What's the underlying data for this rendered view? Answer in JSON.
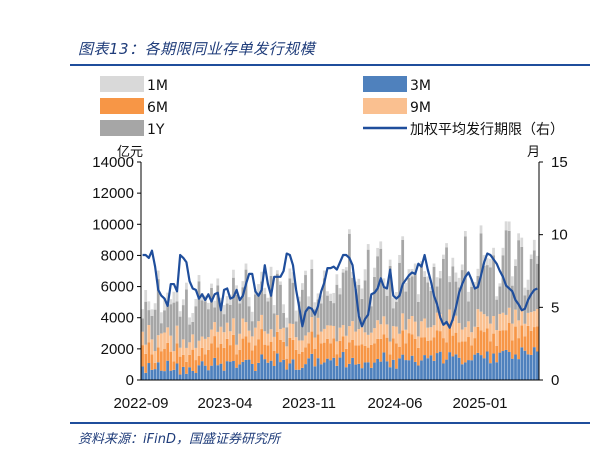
{
  "figure": {
    "title": "图表13：各期限同业存单发行规模",
    "source": "资料来源：iFinD，国盛证券研究所"
  },
  "chart_data": {
    "type": "bar",
    "stacked": true,
    "title": "各期限同业存单发行规模",
    "left_unit": "亿元",
    "right_unit": "月",
    "x_tick_labels": [
      "2022-09",
      "2023-04",
      "2023-11",
      "2024-06",
      "2025-01"
    ],
    "left_axis": {
      "ylim": [
        0,
        14000
      ],
      "ticks": [
        0,
        2000,
        4000,
        6000,
        8000,
        10000,
        12000,
        14000
      ]
    },
    "right_axis": {
      "ylim": [
        0,
        15
      ],
      "ticks": [
        0,
        5,
        10,
        15
      ]
    },
    "legend": [
      {
        "key": "1M",
        "label": "1M",
        "color": "#d9d9d9",
        "kind": "bar"
      },
      {
        "key": "3M",
        "label": "3M",
        "color": "#4f81bd",
        "kind": "bar"
      },
      {
        "key": "6M",
        "label": "6M",
        "color": "#f79646",
        "kind": "bar"
      },
      {
        "key": "9M",
        "label": "9M",
        "color": "#fac090",
        "kind": "bar"
      },
      {
        "key": "1Y",
        "label": "1Y",
        "color": "#a6a6a6",
        "kind": "bar"
      },
      {
        "key": "term",
        "label": "加权平均发行期限（右）",
        "color": "#1f4e9c",
        "kind": "line"
      }
    ],
    "series": [
      {
        "name": "1M",
        "values": [
          590,
          750,
          560,
          430,
          410,
          550,
          700,
          770,
          660,
          320,
          700,
          630,
          350,
          370,
          440,
          460,
          570,
          460,
          400,
          460,
          380,
          400,
          280,
          430,
          450,
          390,
          580,
          480,
          650,
          510,
          610,
          330,
          390,
          390,
          580,
          600,
          330,
          630,
          620,
          400,
          230,
          590,
          540,
          220,
          210,
          550,
          610,
          640,
          670,
          700,
          300,
          420,
          280,
          630,
          600,
          460,
          390,
          510,
          490,
          280,
          460,
          650,
          670,
          390,
          230,
          210,
          290,
          370,
          460,
          400,
          670,
          710,
          360,
          580,
          590,
          530,
          470,
          520,
          480,
          410,
          680,
          620,
          500,
          230,
          560,
          570,
          480,
          620,
          500,
          300,
          360,
          380,
          250,
          210,
          590,
          460,
          280,
          280,
          380,
          560,
          580,
          610,
          360,
          350,
          620,
          460,
          410,
          450,
          510,
          700,
          440,
          540,
          480,
          220,
          200,
          480,
          570,
          610,
          600,
          420,
          440,
          590,
          490,
          640,
          290,
          670,
          500
        ]
      },
      {
        "name": "3M",
        "values": [
          870,
          460,
          1090,
          650,
          700,
          1140,
          600,
          570,
          1240,
          600,
          650,
          1060,
          350,
          840,
          400,
          820,
          580,
          450,
          950,
          1210,
          920,
          630,
          920,
          1420,
          950,
          1050,
          600,
          1210,
          1180,
          1220,
          790,
          1000,
          1160,
          1290,
          1310,
          1030,
          580,
          1100,
          1640,
          1340,
          1110,
          1240,
          900,
          1710,
          1150,
          1300,
          670,
          1060,
          1330,
          660,
          660,
          780,
          1020,
          1390,
          1680,
          880,
          1400,
          1010,
          1130,
          1370,
          1270,
          1430,
          910,
          1440,
          1800,
          820,
          1040,
          1420,
          990,
          1040,
          760,
          1130,
          1140,
          780,
          1120,
          1350,
          1180,
          1770,
          1200,
          820,
          1300,
          730,
          1390,
          1630,
          1280,
          1270,
          1560,
          1160,
          930,
          1260,
          1600,
          1400,
          1590,
          1230,
          1730,
          1820,
          1060,
          1310,
          1790,
          1510,
          1650,
          1430,
          1010,
          1130,
          1280,
          1270,
          1630,
          1740,
          1600,
          1400,
          1830,
          1080,
          1700,
          1140,
          1760,
          1860,
          1930,
          1800,
          1370,
          1640,
          1340,
          2100,
          1880,
          1650,
          1610,
          2110,
          1830
        ]
      },
      {
        "name": "6M",
        "values": [
          1370,
          1220,
          1320,
          1000,
          400,
          960,
          1250,
          1420,
          1140,
          1220,
          550,
          1300,
          1150,
          780,
          770,
          800,
          1370,
          830,
          590,
          850,
          720,
          1300,
          1440,
          1400,
          1150,
          1280,
          1470,
          1430,
          1060,
          1680,
          850,
          940,
          1500,
          1520,
          1110,
          870,
          1640,
          1520,
          1630,
          930,
          1110,
          1220,
          980,
          1380,
          1420,
          1150,
          700,
          1640,
          1250,
          1280,
          1010,
          1020,
          1080,
          970,
          1430,
          1110,
          1530,
          1350,
          1270,
          1280,
          1090,
          1240,
          750,
          1070,
          1010,
          1180,
          1370,
          1150,
          1240,
          1180,
          1540,
          1070,
          940,
          1470,
          1240,
          1300,
          1460,
          1170,
          1520,
          830,
          1380,
          1630,
          730,
          1560,
          1080,
          1740,
          1380,
          1490,
          1140,
          1480,
          1150,
          1120,
          950,
          1500,
          1450,
          1320,
          1630,
          1100,
          1830,
          1340,
          1390,
          1000,
          1460,
          1350,
          1480,
          960,
          1060,
          1670,
          1580,
          1680,
          1480,
          1410,
          1280,
          1060,
          1410,
          1340,
          1270,
          1880,
          1180,
          1790,
          1350,
          1410,
          930,
          1830,
          1550,
          1290,
          1620
        ]
      },
      {
        "name": "9M",
        "values": [
          860,
          590,
          1120,
          960,
          760,
          780,
          1140,
          1060,
          1000,
          1030,
          660,
          1130,
          570,
          990,
          890,
          800,
          980,
          780,
          980,
          730,
          1000,
          830,
          880,
          900,
          990,
          1090,
          1000,
          1040,
          890,
          1060,
          620,
          1030,
          1290,
          910,
          750,
          900,
          1140,
          1160,
          910,
          860,
          750,
          800,
          890,
          1080,
          700,
          900,
          790,
          930,
          1020,
          810,
          870,
          740,
          760,
          700,
          930,
          740,
          1060,
          750,
          880,
          860,
          1140,
          800,
          820,
          850,
          720,
          840,
          1050,
          1210,
          880,
          1050,
          1080,
          860,
          820,
          790,
          970,
          1190,
          940,
          1150,
          850,
          820,
          780,
          1070,
          850,
          1090,
          870,
          900,
          1170,
          1100,
          730,
          1030,
          1200,
          840,
          850,
          790,
          1140,
          1100,
          1050,
          1140,
          910,
          920,
          1090,
          1230,
          770,
          910,
          1010,
          840,
          730,
          1140,
          1210,
          1150,
          780,
          1130,
          1130,
          1010,
          1070,
          1120,
          980,
          960,
          1070,
          1090,
          1140,
          1090,
          800,
          830,
          1200,
          1020,
          1110
        ]
      },
      {
        "name": "1Y",
        "values": [
          860,
          2760,
          960,
          1500,
          2660,
          3600,
          660,
          1430,
          1570,
          2020,
          3110,
          1560,
          2000,
          2200,
          3750,
          1140,
          800,
          2680,
          3820,
          2330,
          2400,
          1790,
          2670,
          940,
          2980,
          1470,
          1160,
          1230,
          1700,
          2610,
          3210,
          1950,
          2010,
          3370,
          1570,
          980,
          2130,
          1750,
          2150,
          2390,
          2080,
          3420,
          1500,
          2660,
          2850,
          960,
          1230,
          2890,
          2650,
          1010,
          2510,
          3260,
          3880,
          1680,
          3090,
          1800,
          1180,
          1810,
          3260,
          1910,
          1580,
          1470,
          3640,
          2150,
          3370,
          4200,
          5930,
          2790,
          2750,
          2830,
          1830,
          3340,
          5470,
          1700,
          3290,
          4110,
          4850,
          1920,
          1840,
          4850,
          1150,
          1600,
          4560,
          4720,
          2450,
          2640,
          2540,
          3110,
          2210,
          3560,
          2680,
          2910,
          2340,
          3750,
          1690,
          2300,
          4030,
          4960,
          1760,
          3520,
          2190,
          2290,
          3820,
          5830,
          1270,
          2920,
          2460,
          2140,
          5030,
          3090,
          3290,
          3620,
          3900,
          1950,
          1770,
          3690,
          5440,
          4930,
          2440,
          2810,
          5150,
          3950,
          1830,
          1490,
          3410,
          3910,
          2910
        ]
      },
      {
        "name": "加权平均发行期限（右）",
        "axis": "right",
        "values": [
          8.6,
          8.6,
          8.4,
          8.9,
          7.8,
          6.2,
          5.8,
          5.6,
          5.1,
          6.6,
          6.6,
          6.1,
          8.6,
          8.4,
          8.1,
          6.8,
          6.3,
          6.2,
          5.6,
          5.9,
          5.5,
          5.9,
          5.4,
          5.9,
          6.0,
          4.8,
          6.2,
          6.3,
          5.6,
          5.7,
          6.2,
          5.5,
          5.8,
          6.6,
          7.3,
          7.3,
          6.1,
          5.8,
          6.2,
          7.9,
          6.6,
          5.8,
          7.1,
          7.1,
          7.1,
          7.5,
          8.7,
          8.6,
          7.9,
          6.2,
          5.0,
          3.7,
          4.7,
          5.0,
          4.9,
          4.5,
          5.1,
          6.1,
          6.7,
          7.7,
          7.7,
          7.8,
          7.6,
          8.1,
          8.6,
          8.6,
          8.4,
          7.9,
          6.2,
          4.4,
          3.7,
          4.2,
          4.5,
          5.9,
          6.0,
          6.3,
          7.0,
          6.4,
          6.3,
          7.6,
          5.8,
          5.6,
          5.8,
          6.6,
          6.9,
          7.2,
          7.4,
          7.3,
          8.0,
          7.8,
          8.6,
          7.6,
          6.8,
          5.8,
          5.2,
          4.3,
          3.8,
          4.0,
          3.6,
          4.2,
          5.0,
          6.0,
          6.6,
          7.1,
          7.4,
          6.9,
          6.3,
          6.4,
          7.2,
          8.1,
          8.7,
          8.6,
          8.3,
          8.0,
          7.5,
          7.1,
          6.5,
          6.3,
          6.1,
          5.5,
          5.2,
          4.8,
          4.9,
          5.5,
          5.9,
          6.2,
          6.3
        ]
      }
    ]
  }
}
